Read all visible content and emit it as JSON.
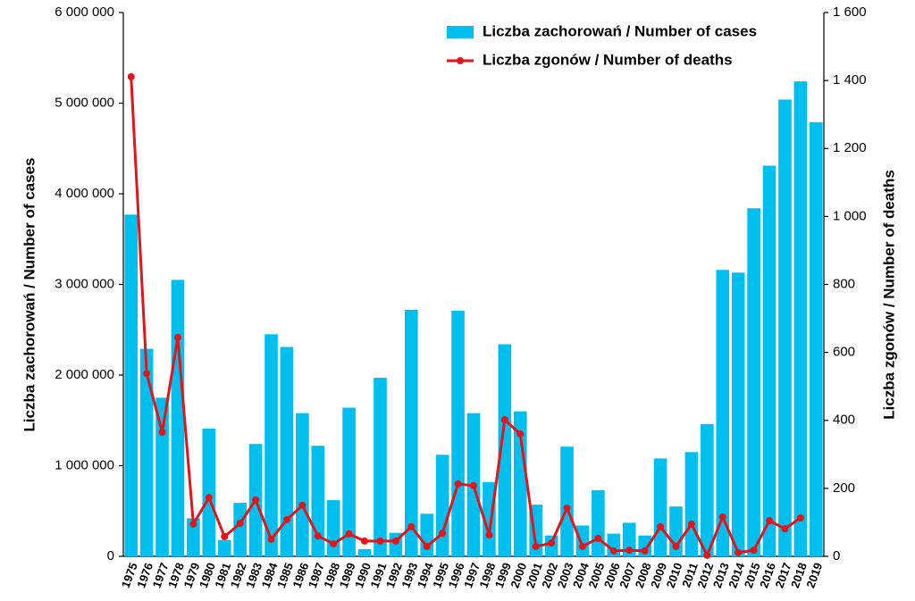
{
  "chart_data": {
    "type": "bar",
    "categories": [
      "1975",
      "1976",
      "1977",
      "1978",
      "1979",
      "1980",
      "1981",
      "1982",
      "1983",
      "1984",
      "1985",
      "1986",
      "1987",
      "1988",
      "1989",
      "1990",
      "1991",
      "1992",
      "1993",
      "1994",
      "1995",
      "1996",
      "1997",
      "1998",
      "1999",
      "2000",
      "2001",
      "2002",
      "2003",
      "2004",
      "2005",
      "2006",
      "2007",
      "2008",
      "2009",
      "2010",
      "2011",
      "2012",
      "2013",
      "2014",
      "2015",
      "2016",
      "2017",
      "2018",
      "2019"
    ],
    "series": [
      {
        "name": "Liczba zachorowań / Number of cases",
        "color": "#00bfef",
        "values": [
          3770000,
          2290000,
          1750000,
          3050000,
          420000,
          1410000,
          180000,
          590000,
          1240000,
          2450000,
          2310000,
          1580000,
          1220000,
          620000,
          1640000,
          80000,
          1970000,
          260000,
          2720000,
          470000,
          1120000,
          2710000,
          1580000,
          820000,
          2340000,
          1600000,
          570000,
          230000,
          1210000,
          340000,
          730000,
          250000,
          370000,
          230000,
          1080000,
          550000,
          1150000,
          1460000,
          3160000,
          3130000,
          3840000,
          4310000,
          5040000,
          5240000,
          4790000
        ]
      },
      {
        "name": "Liczba zgonów / Number of deaths",
        "color": "#e3151a",
        "type": "line",
        "axis": "y2",
        "values": [
          1411,
          538,
          365,
          644,
          95,
          173,
          58,
          97,
          166,
          50,
          108,
          150,
          60,
          37,
          66,
          45,
          45,
          45,
          87,
          29,
          68,
          213,
          208,
          63,
          402,
          360,
          29,
          39,
          142,
          29,
          53,
          16,
          18,
          16,
          87,
          29,
          95,
          3,
          116,
          11,
          18,
          105,
          81,
          113,
          null
        ]
      }
    ],
    "y_label": "Liczba zachorowań  /  Number of cases",
    "y2_label": "Liczba zgonów  /  Number of deaths",
    "ylim": [
      0,
      6000000
    ],
    "yticks": [
      0,
      {
        "value": 1000000,
        "label": "1 000 000"
      },
      {
        "value": 2000000,
        "label": "2 000 000"
      },
      {
        "value": 3000000,
        "label": "3 000 000"
      },
      {
        "value": 4000000,
        "label": "4 000 000"
      },
      {
        "value": 5000000,
        "label": "5 000 000"
      },
      {
        "value": 6000000,
        "label": "6 000 000"
      }
    ],
    "y2lim": [
      0,
      1600
    ],
    "y2ticks": [
      0,
      200,
      400,
      600,
      800,
      {
        "value": 1000,
        "label": "1 000"
      },
      {
        "value": 1200,
        "label": "1 200"
      },
      {
        "value": 1400,
        "label": "1 400"
      },
      {
        "value": 1600,
        "label": "1 600"
      }
    ],
    "legend": "top-right",
    "grid": false
  }
}
